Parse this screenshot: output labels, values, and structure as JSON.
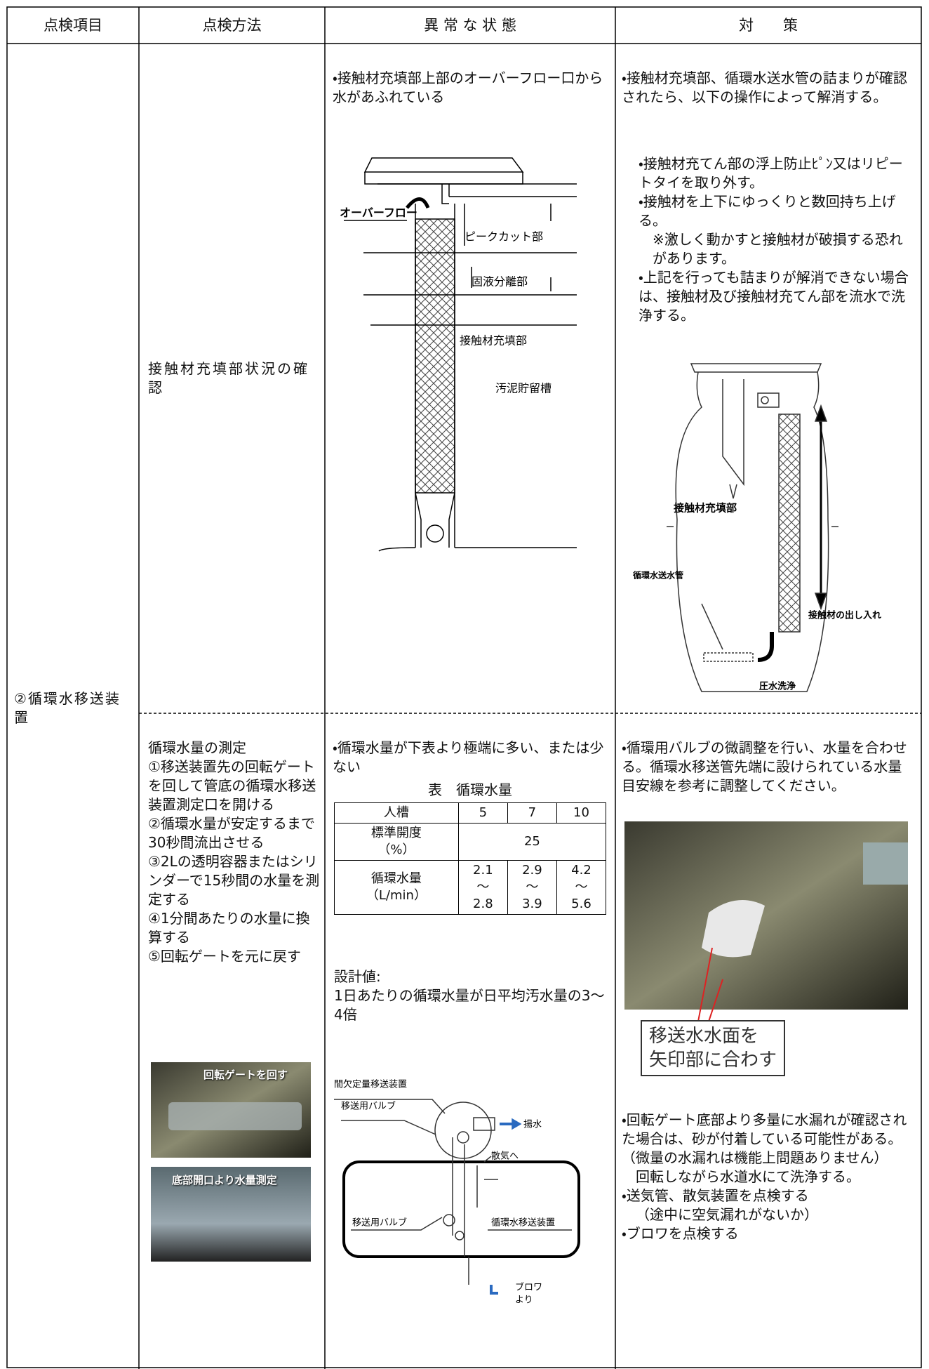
{
  "header": [
    "点検項目",
    "点検方法",
    "異 常 な 状 態",
    "対　　策"
  ],
  "item": "②循環水移送装置",
  "row1": {
    "method": "接触材充填部状況の確認",
    "abnormal": "・接触材充填部上部のオーバーフロー口から水があふれている",
    "figure1": {
      "labels": [
        "オーバーフロー",
        "ピークカット部",
        "固液分離部",
        "接触材充填部",
        "汚泥貯留槽"
      ]
    },
    "action": {
      "intro": "・接触材充填部、循環水送水管の詰まりが確認されたら、以下の操作によって解消する。",
      "steps": [
        "・接触材充てん部の浮上防止ﾋﾟﾝ又はリピートタイを取り外す。",
        "・接触材を上下にゆっくりと数回持ち上げる。",
        "※激しく動かすと接触材が破損する恐れがあります。",
        "・上記を行っても詰まりが解消できない場合は、接触材及び接触材充てん部を流水で洗浄する。"
      ]
    },
    "figure2": {
      "labels": [
        "接触材充填部",
        "循環水送水管",
        "接触材の出し入れ",
        "圧水洗浄"
      ]
    }
  },
  "row2": {
    "method": {
      "title": "循環水量の測定",
      "steps": [
        "①移送装置先の回転ゲートを回して管底の循環水移送装置測定口を開ける",
        "②循環水量が安定するまで30秒間流出させる",
        "③2Lの透明容器またはシリンダーで15秒間の水量を測定する",
        "④1分間あたりの水量に換算する",
        "⑤回転ゲートを元に戻す"
      ],
      "photos": [
        "回転ゲートを回す",
        "底部開口より水量測定"
      ]
    },
    "abnormal": {
      "text": "・循環水量が下表より極端に多い、または少ない",
      "table": {
        "title": "表　循環水量",
        "header": [
          "人槽",
          "5",
          "7",
          "10"
        ],
        "rows": [
          {
            "label": [
              "標準開度",
              "（%）"
            ],
            "cells": [
              "25"
            ]
          },
          {
            "label": [
              "循環水量",
              "（L/min）"
            ],
            "cells": [
              [
                "2.1",
                "～",
                "2.8"
              ],
              [
                "2.9",
                "～",
                "3.9"
              ],
              [
                "4.2",
                "～",
                "5.6"
              ]
            ]
          }
        ]
      },
      "design_label": "設計値:",
      "design_text": "1日あたりの循環水量が日平均汚水量の3～4倍",
      "figure3": {
        "labels": [
          "間欠定量移送装置",
          "移送用バルブ",
          "揚水",
          "散気へ",
          "移送用バルブ",
          "循環水移送装置",
          "ブロワ",
          "より"
        ]
      }
    },
    "action": {
      "text": "・循環用バルブの微調整を行い、水量を合わせる。循環水移送管先端に設けられている水量目安線を参考に調整してください。",
      "photo_caption": [
        "移送水水面を",
        "矢印部に合わす"
      ],
      "steps": [
        "・回転ゲート底部より多量に水漏れが確認された場合は、砂が付着している可能性がある。（微量の水漏れは機能上問題ありません）",
        "回転しながら水道水にて洗浄する。",
        "・送気管、散気装置を点検する",
        "（途中に空気漏れがないか）",
        "・ブロワを点検する"
      ]
    }
  }
}
